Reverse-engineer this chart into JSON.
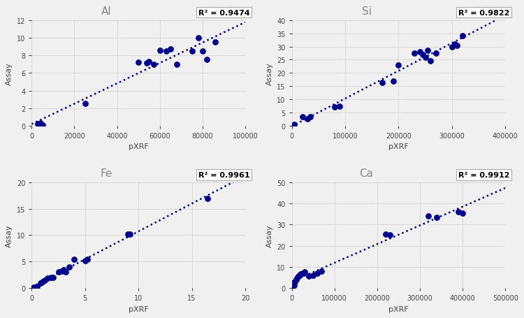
{
  "background_color": "#f0f0f0",
  "dot_color": "#00008B",
  "line_color": "#00008B",
  "subplots": [
    {
      "title": "Al",
      "r2": "R² = 0.9474",
      "xlabel": "pXRF",
      "ylabel": "Assay",
      "xlim": [
        0,
        100000
      ],
      "ylim": [
        0,
        12
      ],
      "xticks": [
        0,
        20000,
        40000,
        60000,
        80000,
        100000
      ],
      "yticks": [
        0,
        2,
        4,
        6,
        8,
        10,
        12
      ],
      "xpXRF": [
        3000,
        4000,
        5000,
        25000,
        50000,
        54000,
        55000,
        57000,
        60000,
        63000,
        65000,
        68000,
        75000,
        78000,
        80000,
        82000,
        86000
      ],
      "yAssay": [
        0.2,
        0.3,
        0.1,
        2.5,
        7.2,
        7.1,
        7.3,
        7.0,
        8.6,
        8.5,
        8.7,
        7.0,
        8.5,
        10.0,
        8.5,
        7.5,
        9.5
      ]
    },
    {
      "title": "Si",
      "r2": "R² = 0.9822",
      "xlabel": "pXRF",
      "ylabel": "Assay",
      "xlim": [
        0,
        400000
      ],
      "ylim": [
        0,
        40
      ],
      "xticks": [
        0,
        100000,
        200000,
        300000,
        400000
      ],
      "yticks": [
        0,
        5,
        10,
        15,
        20,
        25,
        30,
        35,
        40
      ],
      "xpXRF": [
        5000,
        20000,
        30000,
        35000,
        80000,
        90000,
        170000,
        190000,
        200000,
        230000,
        240000,
        245000,
        250000,
        255000,
        260000,
        270000,
        300000,
        305000,
        310000,
        320000
      ],
      "yAssay": [
        0.5,
        3.5,
        2.5,
        3.5,
        7.0,
        7.5,
        16.5,
        17.0,
        23.0,
        27.5,
        28.0,
        27.0,
        26.0,
        28.5,
        24.5,
        27.5,
        30.0,
        31.0,
        30.5,
        34.0
      ]
    },
    {
      "title": "Fe",
      "r2": "R² = 0.9961",
      "xlabel": "pXRF",
      "ylabel": "Assay",
      "xlim": [
        0,
        20
      ],
      "ylim": [
        0,
        20
      ],
      "xticks": [
        0,
        5,
        10,
        15,
        20
      ],
      "yticks": [
        0,
        5,
        10,
        15,
        20
      ],
      "xpXRF": [
        0.2,
        0.5,
        0.8,
        1.0,
        1.2,
        1.5,
        1.8,
        2.0,
        2.5,
        2.8,
        3.0,
        3.2,
        3.5,
        4.0,
        5.0,
        5.2,
        9.0,
        9.2,
        16.5
      ],
      "yAssay": [
        0.1,
        0.3,
        1.0,
        1.2,
        1.5,
        1.8,
        2.0,
        2.0,
        3.0,
        3.2,
        3.5,
        3.0,
        4.0,
        5.5,
        5.2,
        5.5,
        10.2,
        10.2,
        17.0
      ]
    },
    {
      "title": "Ca",
      "r2": "R² = 0.9912",
      "xlabel": "pXRF",
      "ylabel": "Assay",
      "xlim": [
        0,
        500000
      ],
      "ylim": [
        0,
        50
      ],
      "xticks": [
        0,
        100000,
        200000,
        300000,
        400000,
        500000
      ],
      "yticks": [
        0,
        10,
        20,
        30,
        40,
        50
      ],
      "xpXRF": [
        2000,
        5000,
        8000,
        10000,
        12000,
        15000,
        18000,
        20000,
        25000,
        30000,
        40000,
        50000,
        60000,
        70000,
        220000,
        230000,
        320000,
        340000,
        390000,
        400000
      ],
      "yAssay": [
        0.5,
        1.5,
        3.0,
        4.0,
        4.5,
        5.5,
        6.0,
        6.5,
        7.0,
        7.5,
        5.5,
        6.0,
        7.0,
        8.0,
        25.5,
        25.0,
        34.0,
        33.5,
        36.0,
        35.5
      ]
    }
  ]
}
